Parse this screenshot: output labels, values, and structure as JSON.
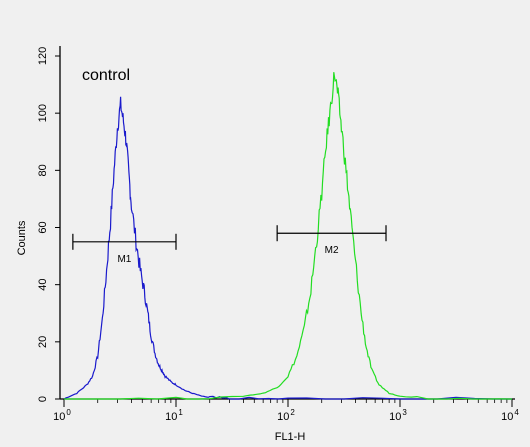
{
  "chart_data": {
    "type": "line",
    "title": "",
    "xlabel": "FL1-H",
    "ylabel": "Counts",
    "x_scale": "log",
    "xlim": [
      1,
      10000
    ],
    "ylim": [
      0,
      120
    ],
    "y_ticks": [
      0,
      20,
      40,
      60,
      80,
      100,
      120
    ],
    "x_ticks": [
      {
        "value": 1,
        "base": "10",
        "exp": "0"
      },
      {
        "value": 10,
        "base": "10",
        "exp": "1"
      },
      {
        "value": 100,
        "base": "10",
        "exp": "2"
      },
      {
        "value": 1000,
        "base": "10",
        "exp": "3"
      },
      {
        "value": 10000,
        "base": "10",
        "exp": "4"
      }
    ],
    "annotation": "control",
    "grid": false,
    "series": [
      {
        "color": "#1a1acc",
        "points": [
          [
            1.0,
            0
          ],
          [
            1.3,
            2
          ],
          [
            1.6,
            5
          ],
          [
            1.8,
            8
          ],
          [
            2.0,
            15
          ],
          [
            2.2,
            28
          ],
          [
            2.4,
            45
          ],
          [
            2.6,
            62
          ],
          [
            2.8,
            80
          ],
          [
            3.0,
            95
          ],
          [
            3.2,
            103
          ],
          [
            3.4,
            97
          ],
          [
            3.6,
            90
          ],
          [
            3.8,
            78
          ],
          [
            4.0,
            68
          ],
          [
            4.4,
            55
          ],
          [
            4.8,
            45
          ],
          [
            5.2,
            38
          ],
          [
            5.6,
            30
          ],
          [
            6.0,
            22
          ],
          [
            6.5,
            16
          ],
          [
            7.0,
            12
          ],
          [
            7.5,
            10
          ],
          [
            8.0,
            8
          ],
          [
            9.0,
            6
          ],
          [
            10,
            5
          ],
          [
            12,
            3
          ],
          [
            14,
            2
          ],
          [
            17,
            1
          ],
          [
            20,
            0.5
          ],
          [
            30,
            0
          ],
          [
            100,
            0
          ],
          [
            1000,
            0
          ],
          [
            10000,
            0
          ]
        ]
      },
      {
        "color": "#22dd22",
        "points": [
          [
            1.0,
            0
          ],
          [
            10,
            0
          ],
          [
            40,
            1
          ],
          [
            60,
            2
          ],
          [
            80,
            4
          ],
          [
            100,
            8
          ],
          [
            120,
            15
          ],
          [
            140,
            25
          ],
          [
            160,
            38
          ],
          [
            180,
            55
          ],
          [
            200,
            72
          ],
          [
            220,
            90
          ],
          [
            240,
            102
          ],
          [
            260,
            114
          ],
          [
            280,
            106
          ],
          [
            300,
            95
          ],
          [
            330,
            80
          ],
          [
            360,
            65
          ],
          [
            400,
            48
          ],
          [
            450,
            30
          ],
          [
            500,
            18
          ],
          [
            560,
            10
          ],
          [
            650,
            5
          ],
          [
            800,
            2
          ],
          [
            1000,
            1
          ],
          [
            2000,
            0
          ],
          [
            10000,
            0
          ]
        ]
      }
    ],
    "markers": [
      {
        "label": "M1",
        "x_start": 1.2,
        "x_end": 10,
        "y": 55
      },
      {
        "label": "M2",
        "x_start": 80,
        "x_end": 750,
        "y": 58
      }
    ]
  }
}
